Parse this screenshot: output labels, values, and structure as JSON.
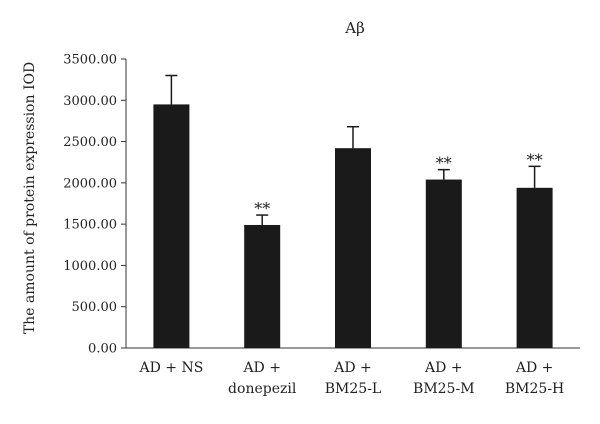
{
  "chart_data": {
    "type": "bar",
    "title": "Aβ",
    "xlabel": "",
    "ylabel": "The amount of protein expression IOD",
    "ylim": [
      0,
      3500
    ],
    "yticks": [
      "0.00",
      "500.00",
      "1000.00",
      "1500.00",
      "2000.00",
      "2500.00",
      "3000.00",
      "3500.00"
    ],
    "categories": [
      [
        "AD + NS"
      ],
      [
        "AD +",
        "donepezil"
      ],
      [
        "AD +",
        "BM25-L"
      ],
      [
        "AD +",
        "BM25-M"
      ],
      [
        "AD +",
        "BM25-H"
      ]
    ],
    "values": [
      2950,
      1490,
      2420,
      2040,
      1940
    ],
    "errors": [
      350,
      120,
      260,
      120,
      260
    ],
    "significance": [
      "",
      "**",
      "",
      "**",
      "**"
    ],
    "bar_color": "#1a1a1a",
    "grid": false,
    "legend": "none"
  }
}
